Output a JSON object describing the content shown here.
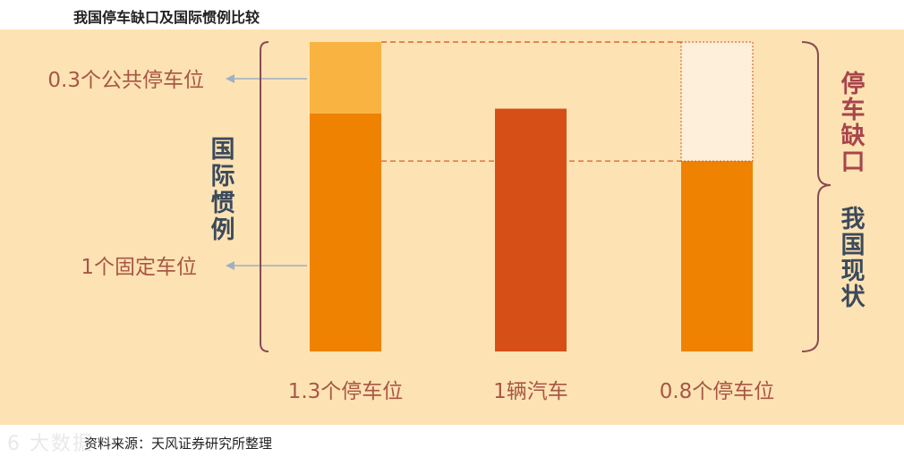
{
  "title": "我国停车缺口及国际惯例比较",
  "source": "资料来源：天风证券研究所整理",
  "watermark": "6 大数据",
  "colors": {
    "background": "#fde3b3",
    "public_spot": "#f8b340",
    "fixed_spot": "#ef8200",
    "car": "#d54f17",
    "gap_fill": "#fdefd9",
    "dash": "#d54f17",
    "label": "#a85645",
    "bracket": "#8a4a55",
    "arrow": "#9fb0c4",
    "side_text": "#3b4a5c",
    "gap_text": "#a8454c"
  },
  "chart_data": {
    "type": "bar",
    "categories": [
      "1.3个停车位",
      "1辆汽车",
      "0.8个停车位"
    ],
    "series": [
      {
        "name": "1个固定车位",
        "values": [
          1.0,
          0,
          0.8
        ]
      },
      {
        "name": "0.3个公共停车位",
        "values": [
          0.3,
          0,
          0
        ]
      },
      {
        "name": "1辆汽车",
        "values": [
          0,
          1.02,
          0
        ]
      },
      {
        "name": "停车缺口",
        "values": [
          0,
          0,
          0.5
        ]
      }
    ],
    "ylim": [
      0,
      1.3
    ],
    "annotations": {
      "public_label": "0.3个公共停车位",
      "fixed_label": "1个固定车位",
      "left_group": "国际惯例",
      "gap_group": "停车缺口",
      "current_group": "我国现状"
    },
    "grid": false
  }
}
